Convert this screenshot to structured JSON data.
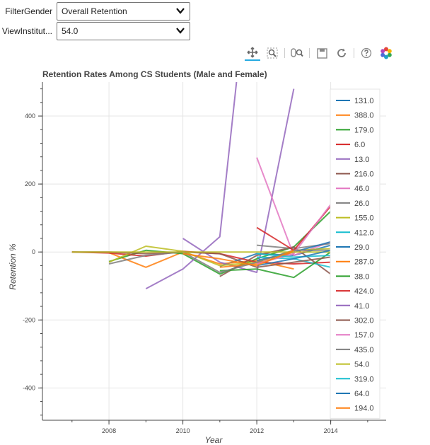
{
  "controls": {
    "filter_gender": {
      "label": "FilterGender",
      "value": "Overall Retention"
    },
    "view_institution": {
      "label": "ViewInstitut...",
      "value": "54.0"
    }
  },
  "toolbar": {
    "tools": [
      "pan-tool-icon",
      "box-zoom-icon",
      "wheel-zoom-icon",
      "save-icon",
      "reset-icon",
      "help-icon",
      "bokeh-logo-icon"
    ]
  },
  "chart_data": {
    "type": "line",
    "title": "Retention Rates Among CS Students (Male and Female)",
    "xlabel": "Year",
    "ylabel": "Retention %",
    "xlim": [
      2006.2,
      2015.5
    ],
    "ylim": [
      -495,
      500
    ],
    "xticks": [
      "2008",
      "2010",
      "2012",
      "2014"
    ],
    "yticks": [
      "400",
      "200",
      "0",
      "-200",
      "-400"
    ],
    "legend_position": "top-right",
    "grid": true,
    "series": [
      {
        "name": "131.0",
        "color": "#1f77b4",
        "points": [
          [
            2011,
            -42
          ],
          [
            2012,
            -5
          ],
          [
            2013,
            -10
          ],
          [
            2014,
            20
          ]
        ]
      },
      {
        "name": "388.0",
        "color": "#ff7f0e",
        "points": [
          [
            2008,
            -2
          ],
          [
            2009,
            -45
          ],
          [
            2010,
            0
          ],
          [
            2011,
            -35
          ],
          [
            2012,
            -25
          ],
          [
            2013,
            -50
          ]
        ]
      },
      {
        "name": "179.0",
        "color": "#2ca02c",
        "points": [
          [
            2008,
            -28
          ],
          [
            2009,
            5
          ],
          [
            2010,
            -5
          ],
          [
            2011,
            -65
          ],
          [
            2012,
            -20
          ],
          [
            2013,
            15
          ],
          [
            2014,
            120
          ]
        ]
      },
      {
        "name": "6.0",
        "color": "#d62728",
        "points": [
          [
            2007,
            0
          ],
          [
            2008,
            -3
          ],
          [
            2009,
            -12
          ],
          [
            2010,
            2
          ],
          [
            2011,
            -5
          ],
          [
            2012,
            -30
          ],
          [
            2013,
            -35
          ],
          [
            2014,
            -30
          ]
        ]
      },
      {
        "name": "13.0",
        "color": "#9467bd",
        "points": [
          [
            2010,
            40
          ],
          [
            2011,
            -30
          ],
          [
            2012,
            -60
          ],
          [
            2013,
            480
          ]
        ]
      },
      {
        "name": "216.0",
        "color": "#8c564b",
        "points": [
          [
            2011,
            -72
          ],
          [
            2012,
            -10
          ],
          [
            2013,
            15
          ],
          [
            2014,
            -65
          ]
        ]
      },
      {
        "name": "46.0",
        "color": "#e377c2",
        "points": [
          [
            2012,
            278
          ],
          [
            2013,
            -10
          ],
          [
            2014,
            30
          ]
        ]
      },
      {
        "name": "26.0",
        "color": "#7f7f7f",
        "points": [
          [
            2012,
            20
          ],
          [
            2013,
            10
          ],
          [
            2014,
            25
          ]
        ]
      },
      {
        "name": "155.0",
        "color": "#bcbd22",
        "points": [
          [
            2008,
            -30
          ],
          [
            2009,
            17
          ],
          [
            2010,
            2
          ],
          [
            2011,
            -40
          ],
          [
            2012,
            -30
          ],
          [
            2013,
            5
          ],
          [
            2014,
            10
          ]
        ]
      },
      {
        "name": "412.0",
        "color": "#17becf",
        "points": [
          [
            2012,
            -15
          ],
          [
            2013,
            -20
          ],
          [
            2014,
            -45
          ]
        ]
      },
      {
        "name": "29.0",
        "color": "#1f77b4",
        "points": [
          [
            2012,
            -25
          ],
          [
            2013,
            0
          ],
          [
            2014,
            30
          ]
        ]
      },
      {
        "name": "287.0",
        "color": "#ff7f0e",
        "points": [
          [
            2011,
            -45
          ],
          [
            2012,
            -35
          ],
          [
            2013,
            0
          ]
        ]
      },
      {
        "name": "38.0",
        "color": "#2ca02c",
        "points": [
          [
            2011,
            -55
          ],
          [
            2012,
            -50
          ],
          [
            2013,
            -75
          ],
          [
            2014,
            0
          ]
        ]
      },
      {
        "name": "424.0",
        "color": "#d62728",
        "points": [
          [
            2012,
            72
          ],
          [
            2013,
            5
          ],
          [
            2014,
            135
          ]
        ]
      },
      {
        "name": "41.0",
        "color": "#9467bd",
        "points": [
          [
            2009,
            -108
          ],
          [
            2010,
            -50
          ],
          [
            2011,
            45
          ],
          [
            2011.45,
            500
          ]
        ]
      },
      {
        "name": "302.0",
        "color": "#8c564b",
        "points": [
          [
            2007,
            0
          ],
          [
            2008,
            0
          ],
          [
            2009,
            -5
          ],
          [
            2010,
            0
          ],
          [
            2011,
            -5
          ],
          [
            2012,
            -45
          ],
          [
            2013,
            -30
          ],
          [
            2014,
            -15
          ]
        ]
      },
      {
        "name": "157.0",
        "color": "#e377c2",
        "points": [
          [
            2012,
            -35
          ],
          [
            2013,
            -5
          ],
          [
            2014,
            140
          ]
        ]
      },
      {
        "name": "435.0",
        "color": "#7f7f7f",
        "points": [
          [
            2008,
            -35
          ],
          [
            2009,
            -10
          ],
          [
            2010,
            0
          ],
          [
            2011,
            -60
          ],
          [
            2012,
            -30
          ],
          [
            2013,
            5
          ],
          [
            2014,
            5
          ]
        ]
      },
      {
        "name": "54.0",
        "color": "#bcbd22",
        "points": [
          [
            2007,
            0
          ],
          [
            2008,
            0
          ],
          [
            2009,
            0
          ],
          [
            2010,
            0
          ],
          [
            2011,
            0
          ],
          [
            2012,
            0
          ],
          [
            2013,
            0
          ],
          [
            2014,
            0
          ]
        ]
      },
      {
        "name": "319.0",
        "color": "#17becf",
        "points": [
          [
            2012,
            -5
          ],
          [
            2013,
            -15
          ],
          [
            2014,
            -10
          ]
        ]
      },
      {
        "name": "64.0",
        "color": "#1f77b4",
        "points": [
          [
            2012,
            -40
          ],
          [
            2013,
            -20
          ],
          [
            2014,
            5
          ]
        ]
      },
      {
        "name": "194.0",
        "color": "#ff7f0e",
        "points": [
          [
            2010,
            -5
          ],
          [
            2011,
            -20
          ],
          [
            2012,
            -40
          ],
          [
            2013,
            5
          ]
        ]
      }
    ]
  }
}
